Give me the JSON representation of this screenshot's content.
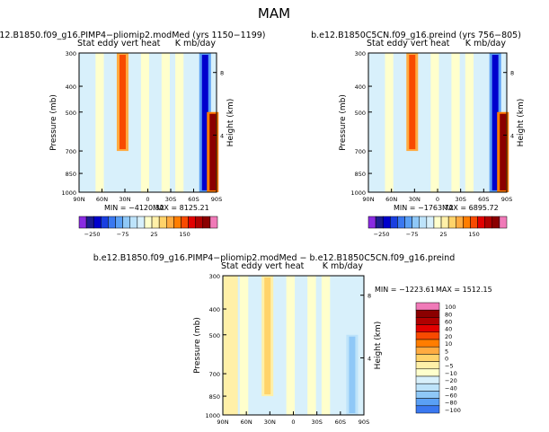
{
  "figure_title": "MAM",
  "colors": {
    "sky_fill": "#d8f0fb",
    "panel1_scale": [
      "#8a2be2",
      "#1d1d90",
      "#0000cd",
      "#1a3fe0",
      "#3a78f0",
      "#5aa0f5",
      "#8fc8f7",
      "#bde3fa",
      "#d8f0fb",
      "#ffffcc",
      "#fff0a8",
      "#ffd36a",
      "#ffab40",
      "#ff7d00",
      "#f84a00",
      "#e20000",
      "#b00000",
      "#8b0000",
      "#f07ab8"
    ],
    "diff_scale": [
      "#8a2be2",
      "#1d1d90",
      "#0000cd",
      "#1a3fe0",
      "#3a78f0",
      "#5aa0f5",
      "#8fc8f7",
      "#bde3fa",
      "#d8f0fb",
      "#ffffcc",
      "#fff0a8",
      "#ffd36a",
      "#ffab40",
      "#ff7d00",
      "#f84a00",
      "#e20000",
      "#b00000",
      "#8b0000",
      "#f07ab8"
    ]
  },
  "chart_data": [
    {
      "type": "heatmap",
      "title": "b.e12.B1850.f09_g16.PIMP4−pliomip2.modMed (yrs 1150−1199)",
      "subtitle_left": "Stat eddy vert heat",
      "subtitle_right": "K mb/day",
      "xlabel": "",
      "ylabel": "Pressure (mb)",
      "y2label": "Height (km)",
      "x_ticks": [
        "90N",
        "60N",
        "30N",
        "0",
        "30S",
        "60S",
        "90S"
      ],
      "x_range": [
        90,
        -90
      ],
      "y_ticks": [
        300,
        400,
        500,
        700,
        850,
        1000
      ],
      "y_range": [
        300,
        1000
      ],
      "y_scale": "log",
      "y2_ticks": [
        8,
        4
      ],
      "min_label": "MIN = −4120.32",
      "max_label": "MAX = 8125.21",
      "colorbar_labels": [
        "−250",
        "−75",
        "25",
        "150"
      ],
      "features": [
        {
          "lat": 33,
          "p_top": 300,
          "p_bottom": 700,
          "value": 100,
          "label": "strong positive ~30N"
        },
        {
          "lat": -75,
          "p_top": 300,
          "p_bottom": 1000,
          "value": -150,
          "label": "strong negative ~75S"
        },
        {
          "lat": -85,
          "p_top": 500,
          "p_bottom": 1000,
          "value": 150,
          "label": "positive ~85S"
        }
      ]
    },
    {
      "type": "heatmap",
      "title": "b.e12.B1850C5CN.f09_g16.preind (yrs 756−805)",
      "subtitle_left": "Stat eddy vert heat",
      "subtitle_right": "K mb/day",
      "xlabel": "",
      "ylabel": "Pressure (mb)",
      "y2label": "Height (km)",
      "x_ticks": [
        "90N",
        "60N",
        "30N",
        "0",
        "30S",
        "60S",
        "90S"
      ],
      "x_range": [
        90,
        -90
      ],
      "y_ticks": [
        300,
        400,
        500,
        700,
        850,
        1000
      ],
      "y_range": [
        300,
        1000
      ],
      "y_scale": "log",
      "y2_ticks": [
        8,
        4
      ],
      "min_label": "MIN = −1763.72",
      "max_label": "MAX = 6895.72",
      "colorbar_labels": [
        "−250",
        "−75",
        "25",
        "150"
      ],
      "features": [
        {
          "lat": 33,
          "p_top": 300,
          "p_bottom": 700,
          "value": 100,
          "label": "strong positive ~30N"
        },
        {
          "lat": -75,
          "p_top": 300,
          "p_bottom": 1000,
          "value": -150,
          "label": "strong negative ~75S"
        },
        {
          "lat": -85,
          "p_top": 500,
          "p_bottom": 1000,
          "value": 150,
          "label": "positive ~85S"
        }
      ]
    },
    {
      "type": "heatmap",
      "title": "b.e12.B1850.f09_g16.PIMP4−pliomip2.modMed − b.e12.B1850C5CN.f09_g16.preind",
      "subtitle_left": "Stat eddy vert heat",
      "subtitle_right": "K mb/day",
      "xlabel": "",
      "ylabel": "Pressure (mb)",
      "y2label": "Height (km)",
      "x_ticks": [
        "90N",
        "60N",
        "30N",
        "0",
        "30S",
        "60S",
        "90S"
      ],
      "x_range": [
        90,
        -90
      ],
      "y_ticks": [
        300,
        400,
        500,
        700,
        850,
        1000
      ],
      "y_range": [
        300,
        1000
      ],
      "y_scale": "log",
      "y2_ticks": [
        8,
        4
      ],
      "min_label": "MIN = −1223.61",
      "max_label": "MAX = 1512.15",
      "colorbar_labels": [
        "100",
        "80",
        "60",
        "40",
        "20",
        "10",
        "5",
        "0",
        "−5",
        "−10",
        "−20",
        "−40",
        "−60",
        "−80",
        "−100"
      ],
      "features": [
        {
          "lat": 33,
          "p_top": 300,
          "p_bottom": 850,
          "value": 40,
          "label": "positive ~30N"
        },
        {
          "lat": 80,
          "p_top": 300,
          "p_bottom": 1000,
          "value": 20,
          "label": "positive ~80N"
        },
        {
          "lat": -75,
          "p_top": 500,
          "p_bottom": 1000,
          "value": -60,
          "label": "mixed ~75S"
        }
      ]
    }
  ]
}
